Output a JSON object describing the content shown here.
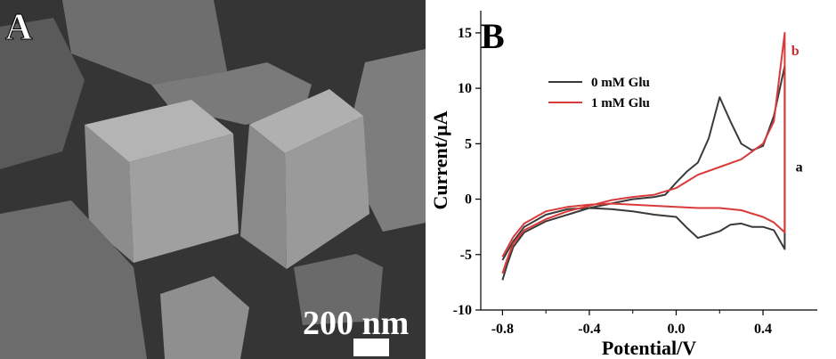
{
  "panel_a": {
    "label": "A",
    "scale_bar_text": "200 nm",
    "colors": {
      "background": "#3c3c3c",
      "scale_text": "#ffffff"
    }
  },
  "panel_b": {
    "label": "B",
    "curve_labels": {
      "a": "a",
      "b": "b"
    },
    "colors": {
      "series_a": "#3a3a3a",
      "series_b": "#d93a3a",
      "label_b": "#c83030"
    }
  },
  "chart_data": {
    "type": "line",
    "title": "",
    "xlabel": "Potential/V",
    "ylabel": "Current/μA",
    "xlim": [
      -0.9,
      0.65
    ],
    "ylim": [
      -10,
      17
    ],
    "xticks": [
      -0.8,
      -0.4,
      0.0,
      0.4
    ],
    "xtick_labels": [
      "-0.8",
      "-0.4",
      "0.0",
      "0.4"
    ],
    "yticks": [
      -10,
      -5,
      0,
      5,
      10,
      15
    ],
    "ytick_labels": [
      "-10",
      "-5",
      "0",
      "5",
      "10",
      "15"
    ],
    "legend_position": "top-left",
    "series": [
      {
        "name": "0 mM Glu",
        "points": [
          [
            -0.8,
            -7.3
          ],
          [
            -0.78,
            -6.0
          ],
          [
            -0.75,
            -4.3
          ],
          [
            -0.7,
            -3.0
          ],
          [
            -0.6,
            -2.0
          ],
          [
            -0.5,
            -1.4
          ],
          [
            -0.4,
            -0.8
          ],
          [
            -0.3,
            -0.4
          ],
          [
            -0.2,
            0.0
          ],
          [
            -0.1,
            0.2
          ],
          [
            -0.05,
            0.4
          ],
          [
            0.0,
            1.5
          ],
          [
            0.05,
            2.5
          ],
          [
            0.1,
            3.3
          ],
          [
            0.15,
            5.5
          ],
          [
            0.2,
            9.2
          ],
          [
            0.25,
            7.0
          ],
          [
            0.3,
            5.0
          ],
          [
            0.35,
            4.4
          ],
          [
            0.4,
            4.8
          ],
          [
            0.45,
            7.5
          ],
          [
            0.5,
            12.0
          ],
          [
            0.5,
            -4.5
          ],
          [
            0.45,
            -2.8
          ],
          [
            0.4,
            -2.5
          ],
          [
            0.35,
            -2.5
          ],
          [
            0.3,
            -2.2
          ],
          [
            0.25,
            -2.3
          ],
          [
            0.2,
            -2.9
          ],
          [
            0.15,
            -3.2
          ],
          [
            0.1,
            -3.5
          ],
          [
            0.05,
            -2.6
          ],
          [
            0.0,
            -1.6
          ],
          [
            -0.1,
            -1.4
          ],
          [
            -0.2,
            -1.1
          ],
          [
            -0.3,
            -0.9
          ],
          [
            -0.4,
            -0.8
          ],
          [
            -0.5,
            -0.9
          ],
          [
            -0.6,
            -1.4
          ],
          [
            -0.7,
            -2.5
          ],
          [
            -0.75,
            -3.8
          ],
          [
            -0.8,
            -5.5
          ]
        ]
      },
      {
        "name": "1 mM Glu",
        "points": [
          [
            -0.8,
            -6.7
          ],
          [
            -0.78,
            -5.5
          ],
          [
            -0.75,
            -4.0
          ],
          [
            -0.7,
            -2.8
          ],
          [
            -0.6,
            -1.8
          ],
          [
            -0.5,
            -1.1
          ],
          [
            -0.4,
            -0.6
          ],
          [
            -0.3,
            -0.1
          ],
          [
            -0.2,
            0.2
          ],
          [
            -0.1,
            0.4
          ],
          [
            0.0,
            1.0
          ],
          [
            0.05,
            1.6
          ],
          [
            0.1,
            2.2
          ],
          [
            0.2,
            2.9
          ],
          [
            0.3,
            3.6
          ],
          [
            0.4,
            5.0
          ],
          [
            0.45,
            7.0
          ],
          [
            0.5,
            15.0
          ],
          [
            0.5,
            -3.0
          ],
          [
            0.45,
            -2.1
          ],
          [
            0.4,
            -1.6
          ],
          [
            0.3,
            -1.0
          ],
          [
            0.2,
            -0.8
          ],
          [
            0.1,
            -0.8
          ],
          [
            0.0,
            -0.7
          ],
          [
            -0.1,
            -0.6
          ],
          [
            -0.2,
            -0.5
          ],
          [
            -0.3,
            -0.4
          ],
          [
            -0.4,
            -0.5
          ],
          [
            -0.5,
            -0.7
          ],
          [
            -0.6,
            -1.1
          ],
          [
            -0.7,
            -2.2
          ],
          [
            -0.75,
            -3.4
          ],
          [
            -0.8,
            -5.2
          ]
        ]
      }
    ]
  }
}
